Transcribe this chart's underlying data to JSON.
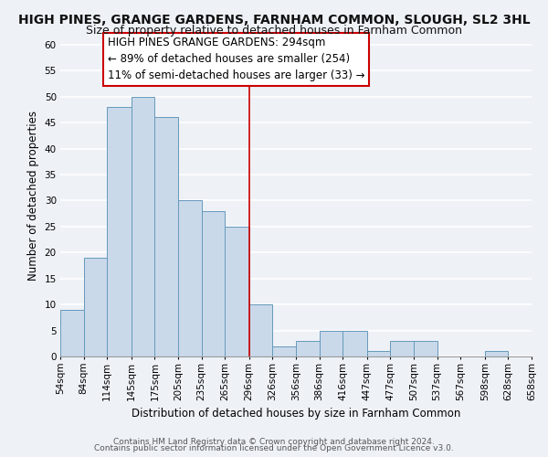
{
  "title": "HIGH PINES, GRANGE GARDENS, FARNHAM COMMON, SLOUGH, SL2 3HL",
  "subtitle": "Size of property relative to detached houses in Farnham Common",
  "xlabel": "Distribution of detached houses by size in Farnham Common",
  "ylabel": "Number of detached properties",
  "bin_edges": [
    54,
    84,
    114,
    145,
    175,
    205,
    235,
    265,
    296,
    326,
    356,
    386,
    416,
    447,
    477,
    507,
    537,
    567,
    598,
    628,
    658
  ],
  "bin_labels": [
    "54sqm",
    "84sqm",
    "114sqm",
    "145sqm",
    "175sqm",
    "205sqm",
    "235sqm",
    "265sqm",
    "296sqm",
    "326sqm",
    "356sqm",
    "386sqm",
    "416sqm",
    "447sqm",
    "477sqm",
    "507sqm",
    "537sqm",
    "567sqm",
    "598sqm",
    "628sqm",
    "658sqm"
  ],
  "counts": [
    9,
    19,
    48,
    50,
    46,
    30,
    28,
    25,
    10,
    2,
    3,
    5,
    5,
    1,
    3,
    3,
    0,
    0,
    1,
    0
  ],
  "bar_color": "#c9d9ea",
  "bar_edge_color": "#6699bb",
  "ylim": [
    0,
    62
  ],
  "yticks": [
    0,
    5,
    10,
    15,
    20,
    25,
    30,
    35,
    40,
    45,
    50,
    55,
    60
  ],
  "property_line_x": 296,
  "property_line_color": "#cc0000",
  "annotation_title": "HIGH PINES GRANGE GARDENS: 294sqm",
  "annotation_line1": "← 89% of detached houses are smaller (254)",
  "annotation_line2": "11% of semi-detached houses are larger (33) →",
  "annotation_box_color": "#ffffff",
  "annotation_box_edge": "#cc0000",
  "footer_line1": "Contains HM Land Registry data © Crown copyright and database right 2024.",
  "footer_line2": "Contains public sector information licensed under the Open Government Licence v3.0.",
  "background_color": "#eef2f7",
  "grid_color": "#ffffff",
  "title_fontsize": 10,
  "subtitle_fontsize": 9,
  "axis_label_fontsize": 8.5,
  "tick_fontsize": 7.5,
  "annotation_fontsize": 8.5,
  "footer_fontsize": 6.5
}
